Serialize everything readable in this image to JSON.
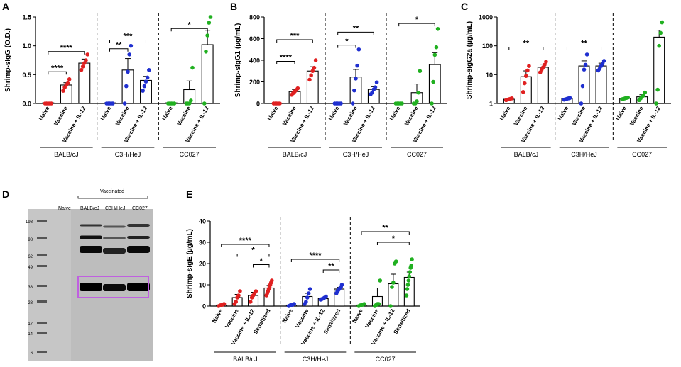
{
  "figure": {
    "panels": [
      {
        "id": "A",
        "label": "A"
      },
      {
        "id": "B",
        "label": "B"
      },
      {
        "id": "C",
        "label": "C"
      },
      {
        "id": "D",
        "label": "D"
      },
      {
        "id": "E",
        "label": "E"
      }
    ]
  },
  "colors": {
    "naive_balb": "#e02020",
    "vaccine_balb": "#e02020",
    "c3h": "#1f2fd0",
    "cc027": "#20b020",
    "sensitized_bar": "#000000"
  },
  "chart_data": [
    {
      "id": "A",
      "type": "bar",
      "title": "",
      "ylabel": "Shrimp-sIgG (O.D.)",
      "yscale": "linear",
      "ylim": [
        0,
        1.5
      ],
      "yticks": [
        0,
        0.5,
        1.0,
        1.5
      ],
      "ytick_labels": [
        "0.0",
        "0.5",
        "1.0",
        "1.5"
      ],
      "groups": [
        {
          "name": "BALB/cJ",
          "color": "#e02020",
          "categories": [
            "Naive",
            "Vaccine",
            "Vaccine + IL-12"
          ],
          "values": [
            0.01,
            0.32,
            0.7
          ],
          "errors": [
            0.0,
            0.04,
            0.07
          ],
          "points": [
            [
              0,
              0,
              0,
              0,
              0
            ],
            [
              0.22,
              0.28,
              0.32,
              0.35,
              0.42
            ],
            [
              0.58,
              0.64,
              0.7,
              0.75,
              0.85
            ]
          ]
        },
        {
          "name": "C3H/HeJ",
          "color": "#1f2fd0",
          "categories": [
            "Naive",
            "Vaccine",
            "Vaccine + IL-12"
          ],
          "values": [
            0.01,
            0.58,
            0.4
          ],
          "errors": [
            0.0,
            0.2,
            0.07
          ],
          "points": [
            [
              0,
              0,
              0,
              0,
              0
            ],
            [
              0.0,
              0.3,
              0.55,
              0.85,
              1.0
            ],
            [
              0.22,
              0.3,
              0.38,
              0.45,
              0.58
            ]
          ]
        },
        {
          "name": "CC027",
          "color": "#20b020",
          "categories": [
            "Naive",
            "Vaccine",
            "Vaccine + IL-12"
          ],
          "values": [
            0.01,
            0.24,
            1.02
          ],
          "errors": [
            0.0,
            0.15,
            0.25
          ],
          "points": [
            [
              0,
              0,
              0,
              0,
              0
            ],
            [
              0,
              0,
              0,
              0.05,
              0.62
            ],
            [
              0,
              0.9,
              1.18,
              1.4,
              1.5
            ]
          ]
        }
      ],
      "annotations": [
        {
          "text": "****",
          "group": 0,
          "from": 0,
          "to": 1,
          "y": 0.55
        },
        {
          "text": "****",
          "group": 0,
          "from": 0,
          "to": 2,
          "y": 0.9
        },
        {
          "text": "**",
          "group": 1,
          "from": 0,
          "to": 1,
          "y": 0.95
        },
        {
          "text": "***",
          "group": 1,
          "from": 0,
          "to": 2,
          "y": 1.1
        },
        {
          "text": "*",
          "group": 2,
          "from": 0,
          "to": 2,
          "y": 1.3
        }
      ]
    },
    {
      "id": "B",
      "type": "bar",
      "title": "",
      "ylabel": "Shrimp-sIgG1 (µg/mL)",
      "yscale": "linear",
      "ylim": [
        0,
        800
      ],
      "yticks": [
        0,
        200,
        400,
        600,
        800
      ],
      "ytick_labels": [
        "0",
        "200",
        "400",
        "600",
        "800"
      ],
      "groups": [
        {
          "name": "BALB/cJ",
          "color": "#e02020",
          "categories": [
            "Naive",
            "Vaccine",
            "Vaccine + IL-12"
          ],
          "values": [
            3,
            110,
            300
          ],
          "errors": [
            0,
            20,
            40
          ],
          "points": [
            [
              0,
              0,
              0,
              0,
              0
            ],
            [
              80,
              95,
              110,
              125,
              140
            ],
            [
              220,
              260,
              300,
              330,
              400
            ]
          ]
        },
        {
          "name": "C3H/HeJ",
          "color": "#1f2fd0",
          "categories": [
            "Naive",
            "Vaccine",
            "Vaccine + IL-12"
          ],
          "values": [
            3,
            245,
            130
          ],
          "errors": [
            0,
            70,
            25
          ],
          "points": [
            [
              0,
              0,
              0,
              0,
              0
            ],
            [
              0,
              120,
              230,
              350,
              500
            ],
            [
              85,
              100,
              130,
              150,
              195
            ]
          ]
        },
        {
          "name": "CC027",
          "color": "#20b020",
          "categories": [
            "Naive",
            "Vaccine",
            "Vaccine + IL-12"
          ],
          "values": [
            3,
            100,
            360
          ],
          "errors": [
            0,
            80,
            110
          ],
          "points": [
            [
              0,
              0,
              0,
              0,
              0
            ],
            [
              0,
              0,
              20,
              100,
              300
            ],
            [
              0,
              200,
              450,
              520,
              690
            ]
          ]
        }
      ],
      "annotations": [
        {
          "text": "****",
          "group": 0,
          "from": 0,
          "to": 1,
          "y": 390
        },
        {
          "text": "***",
          "group": 0,
          "from": 0,
          "to": 2,
          "y": 590
        },
        {
          "text": "*",
          "group": 1,
          "from": 0,
          "to": 1,
          "y": 540
        },
        {
          "text": "**",
          "group": 1,
          "from": 0,
          "to": 2,
          "y": 660
        },
        {
          "text": "*",
          "group": 2,
          "from": 0,
          "to": 2,
          "y": 740
        }
      ]
    },
    {
      "id": "C",
      "type": "bar",
      "title": "",
      "ylabel": "Shrimp-sIgG2a (µg/mL)",
      "yscale": "log",
      "ylim": [
        1,
        1000
      ],
      "yticks": [
        1,
        10,
        100,
        1000
      ],
      "ytick_labels": [
        "1",
        "10",
        "100",
        "1000"
      ],
      "groups": [
        {
          "name": "BALB/cJ",
          "color": "#e02020",
          "categories": [
            "Naive",
            "Vaccine",
            "Vaccine + IL-12"
          ],
          "values": [
            1.4,
            8.5,
            18
          ],
          "errors": [
            0.1,
            5,
            5
          ],
          "points": [
            [
              1.3,
              1.35,
              1.4,
              1.45,
              1.5
            ],
            [
              2.5,
              5,
              9,
              14,
              20
            ],
            [
              12,
              15,
              18,
              22,
              28
            ]
          ]
        },
        {
          "name": "C3H/HeJ",
          "color": "#1f2fd0",
          "categories": [
            "Naive",
            "Vaccine",
            "Vaccine + IL-12"
          ],
          "values": [
            1.45,
            20,
            20
          ],
          "errors": [
            0.1,
            10,
            5
          ],
          "points": [
            [
              1.35,
              1.4,
              1.45,
              1.5,
              1.55
            ],
            [
              1,
              4,
              15,
              22,
              50
            ],
            [
              14,
              16,
              20,
              24,
              30
            ]
          ]
        },
        {
          "name": "CC027",
          "color": "#20b020",
          "categories": [
            "Naive",
            "Vaccine",
            "Vaccine + IL-12"
          ],
          "values": [
            1.5,
            1.7,
            200
          ],
          "errors": [
            0.1,
            0.3,
            150
          ],
          "points": [
            [
              1.4,
              1.45,
              1.5,
              1.55,
              1.6
            ],
            [
              1.3,
              1.5,
              1.7,
              1.9,
              2.4
            ],
            [
              1,
              3,
              100,
              280,
              650
            ]
          ]
        }
      ],
      "annotations": [
        {
          "text": "**",
          "group": 0,
          "from": 0,
          "to": 2,
          "y": 90
        },
        {
          "text": "**",
          "group": 1,
          "from": 0,
          "to": 2,
          "y": 90
        }
      ]
    },
    {
      "id": "E",
      "type": "bar",
      "title": "",
      "ylabel": "Shrimp-sIgE (µg/mL)",
      "yscale": "linear",
      "ylim": [
        0,
        40
      ],
      "yticks": [
        0,
        10,
        20,
        30,
        40
      ],
      "ytick_labels": [
        "0",
        "10",
        "20",
        "30",
        "40"
      ],
      "groups": [
        {
          "name": "BALB/cJ",
          "color": "#e02020",
          "categories": [
            "Naive",
            "Vaccine",
            "Vaccine + IL-12",
            "Sensitized"
          ],
          "values": [
            0.5,
            4,
            5,
            8.5
          ],
          "errors": [
            0.2,
            1.5,
            1.5,
            1.2
          ],
          "points": [
            [
              0,
              0.3,
              0.5,
              0.7,
              1
            ],
            [
              1,
              2,
              4,
              5,
              7
            ],
            [
              2,
              4,
              5,
              6,
              7
            ],
            [
              5,
              6,
              7,
              8,
              9,
              10,
              11,
              12
            ]
          ]
        },
        {
          "name": "C3H/HeJ",
          "color": "#1f2fd0",
          "categories": [
            "Naive",
            "Vaccine",
            "Vaccine + IL-12",
            "Sensitized"
          ],
          "values": [
            0.5,
            4.5,
            3.5,
            8
          ],
          "errors": [
            0.2,
            1.5,
            0.5,
            0.8
          ],
          "points": [
            [
              0,
              0.3,
              0.5,
              0.7,
              1
            ],
            [
              1,
              2,
              4,
              6,
              8
            ],
            [
              3,
              3.3,
              3.6,
              4,
              4.5
            ],
            [
              6,
              7,
              7.5,
              8,
              8.5,
              9,
              10
            ]
          ]
        },
        {
          "name": "CC027",
          "color": "#20b020",
          "categories": [
            "Naive",
            "Vaccine",
            "Vaccine + IL-12",
            "Sensitized"
          ],
          "values": [
            0.5,
            4.5,
            10.5,
            13.5
          ],
          "errors": [
            0.2,
            4,
            4.5,
            2.5
          ],
          "points": [
            [
              0,
              0.3,
              0.5,
              0.7,
              1
            ],
            [
              0,
              0.5,
              1,
              1,
              12
            ],
            [
              0,
              9,
              11,
              20,
              21
            ],
            [
              5,
              8,
              10,
              12,
              14,
              16,
              18,
              19,
              22
            ]
          ]
        }
      ],
      "annotations": [
        {
          "text": "****",
          "group": 0,
          "from": 0,
          "to": 3,
          "y": 29
        },
        {
          "text": "*",
          "group": 0,
          "from": 1,
          "to": 3,
          "y": 24.5
        },
        {
          "text": "*",
          "group": 0,
          "from": 2,
          "to": 3,
          "y": 19.5
        },
        {
          "text": "****",
          "group": 1,
          "from": 0,
          "to": 3,
          "y": 22
        },
        {
          "text": "**",
          "group": 1,
          "from": 2,
          "to": 3,
          "y": 17
        },
        {
          "text": "**",
          "group": 2,
          "from": 0,
          "to": 3,
          "y": 35
        },
        {
          "text": "*",
          "group": 2,
          "from": 1,
          "to": 3,
          "y": 30
        }
      ]
    }
  ],
  "blot": {
    "header": "Vaccinated",
    "lanes": [
      "Naive",
      "BALB/cJ",
      "C3H/HeJ",
      "CC027"
    ],
    "ladder": [
      "198",
      "98",
      "62",
      "49",
      "38",
      "28",
      "17",
      "14",
      "6"
    ],
    "highlight_color": "#c060e0"
  }
}
